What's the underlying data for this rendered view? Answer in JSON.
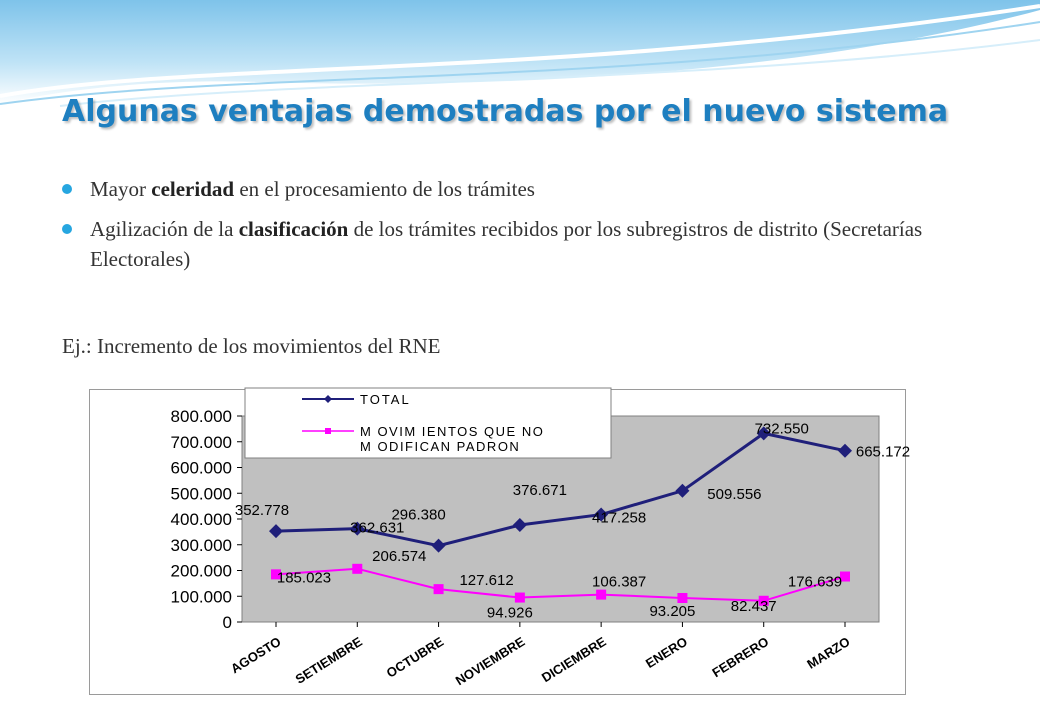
{
  "slide": {
    "title": "Algunas ventajas demostradas por el nuevo sistema",
    "bullets": [
      {
        "before": "Mayor ",
        "bold": "celeridad",
        "after": " en el procesamiento de los trámites"
      },
      {
        "before": "Agilización de la ",
        "bold": "clasificación",
        "after": " de los trámites recibidos por los subregistros de distrito (Secretarías Electorales)"
      }
    ],
    "example": "Ej.: Incremento de los movimientos del RNE"
  },
  "colors": {
    "title": "#1e7fc0",
    "total_series": "#1f1f7a",
    "second_series": "#ff00ff",
    "plot_bg": "#c0c0c0"
  },
  "chart_data": {
    "type": "line",
    "categories": [
      "AGOSTO",
      "SETIEMBRE",
      "OCTUBRE",
      "NOVIEMBRE",
      "DICIEMBRE",
      "ENERO",
      "FEBRERO",
      "MARZO"
    ],
    "ylim": [
      0,
      800000
    ],
    "yticks": [
      "800.000",
      "700.000",
      "600.000",
      "500.000",
      "400.000",
      "300.000",
      "200.000",
      "100.000",
      "0"
    ],
    "grid": false,
    "legend_position": "top-left",
    "series": [
      {
        "name": "TOTAL",
        "values": [
          352778,
          362631,
          296380,
          376671,
          417258,
          509556,
          732550,
          665172
        ],
        "labels": [
          "352.778",
          "362.631",
          "296.380",
          "376.671",
          "417.258",
          "509.556",
          "732.550",
          "665.172"
        ],
        "marker": "diamond"
      },
      {
        "name": "MOVIMIENTOS QUE NO MODIFICAN PADRON",
        "name_lines": [
          "M OVIM IENTOS QUE NO",
          "M ODIFICAN PADRON"
        ],
        "values": [
          185023,
          206574,
          127612,
          94926,
          106387,
          93205,
          82437,
          176639
        ],
        "labels": [
          "185.023",
          "206.574",
          "127.612",
          "94.926",
          "106.387",
          "93.205",
          "82.437",
          "176.639"
        ],
        "marker": "square"
      }
    ]
  }
}
